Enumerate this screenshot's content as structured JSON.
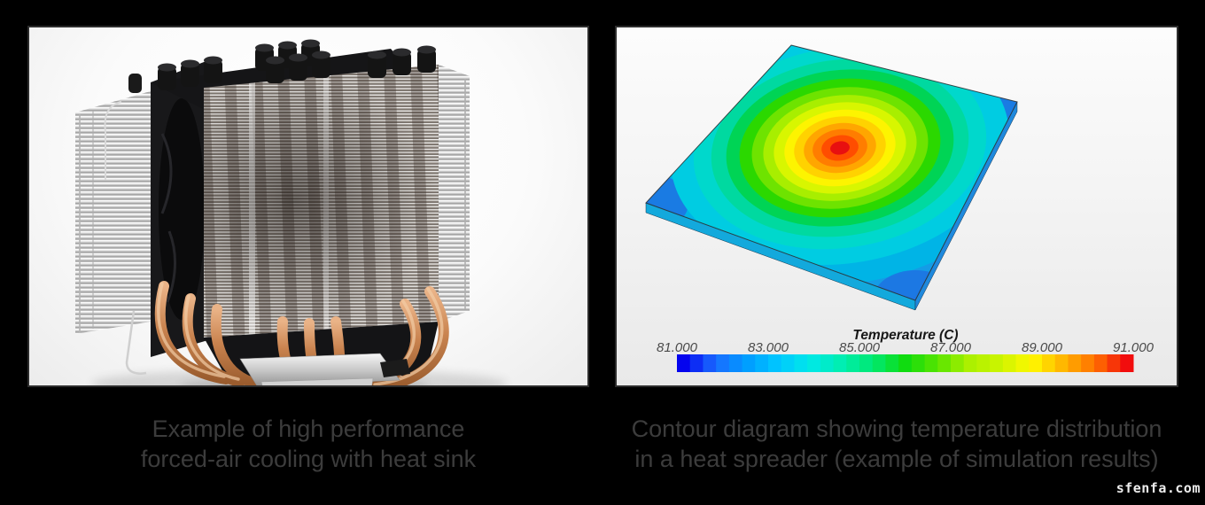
{
  "page": {
    "background": "#000000",
    "watermark": "sfenfa.com"
  },
  "left_figure": {
    "subject": "high performance forced-air CPU cooler photograph",
    "caption": {
      "line1": "Example of high performance",
      "line2": "forced-air cooling with heat sink"
    }
  },
  "right_figure": {
    "subject": "3D temperature contour plot of a heat spreader plate",
    "caption": {
      "line1": "Contour diagram showing temperature distribution",
      "line2": "in a heat spreader (example of simulation results)"
    }
  },
  "chart_data": {
    "type": "heatmap",
    "title": "Temperature (C)",
    "legend_position": "bottom",
    "colorbar": {
      "min": 81,
      "max": 91,
      "tick_labels": [
        "81.000",
        "83.000",
        "85.000",
        "87.000",
        "89.000",
        "91.000"
      ],
      "n_segments": 35,
      "color_stops": [
        "#0404ee",
        "#1a6bff",
        "#009cff",
        "#00c8ff",
        "#00e8e8",
        "#00eeb0",
        "#00e870",
        "#10dc10",
        "#55e400",
        "#aaf000",
        "#ccf400",
        "#fff800",
        "#ffb400",
        "#ff7000",
        "#f20d0d"
      ],
      "tick_color": "#4a4a4a",
      "title_color": "#161616"
    },
    "surface": {
      "shape": "flat square plate viewed in 3D perspective",
      "pattern": "concentric contour rings decaying from a central hot spot to cool corners",
      "peak_value_c": 91,
      "corner_value_c": 81,
      "plate_quad": [
        [
          197,
          20
        ],
        [
          452,
          84
        ],
        [
          337,
          308
        ],
        [
          33,
          198
        ]
      ],
      "thickness_px": 11,
      "hot_center": [
        252,
        136
      ],
      "ring_aspect": 0.68,
      "ring_rotation_deg": -8,
      "base_color": "#2188e8",
      "corner_color": "#1d74e2",
      "edge_face_colors": [
        "#0fa8dc",
        "#1b87dd"
      ],
      "rings": [
        {
          "value_c": 82.0,
          "color": "#149ce6",
          "a": 268
        },
        {
          "value_c": 82.6,
          "color": "#00b4e6",
          "a": 226
        },
        {
          "value_c": 83.2,
          "color": "#00cce2",
          "a": 192
        },
        {
          "value_c": 83.8,
          "color": "#00d8cc",
          "a": 166
        },
        {
          "value_c": 84.4,
          "color": "#00d9a0",
          "a": 146
        },
        {
          "value_c": 85.0,
          "color": "#00d455",
          "a": 129
        },
        {
          "value_c": 85.6,
          "color": "#2bd800",
          "a": 114
        },
        {
          "value_c": 86.2,
          "color": "#6ee300",
          "a": 100
        },
        {
          "value_c": 86.8,
          "color": "#a8ee00",
          "a": 87
        },
        {
          "value_c": 87.4,
          "color": "#d8f600",
          "a": 75
        },
        {
          "value_c": 88.0,
          "color": "#fdf400",
          "a": 63
        },
        {
          "value_c": 88.6,
          "color": "#ffd200",
          "a": 52
        },
        {
          "value_c": 89.2,
          "color": "#ffa600",
          "a": 41
        },
        {
          "value_c": 89.8,
          "color": "#ff7d00",
          "a": 31
        },
        {
          "value_c": 90.4,
          "color": "#ff4d00",
          "a": 21
        },
        {
          "value_c": 91.0,
          "color": "#e81010",
          "a": 11
        }
      ]
    }
  }
}
